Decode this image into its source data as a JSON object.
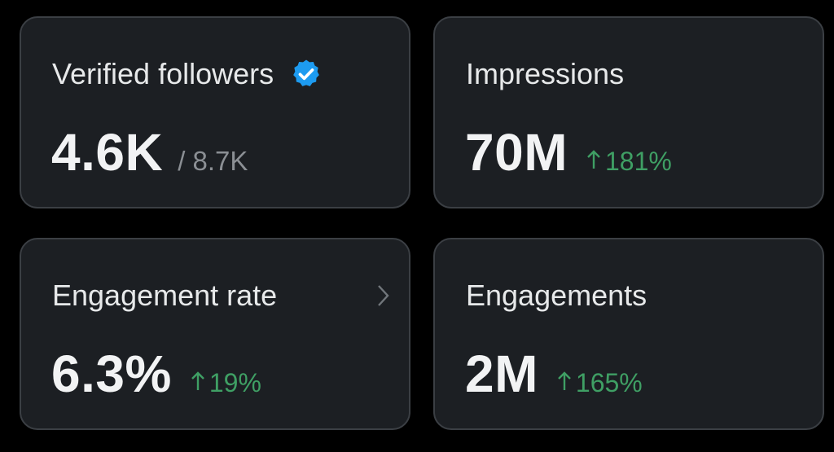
{
  "cards": [
    {
      "label": "Verified followers",
      "value": "4.6K",
      "total": "/ 8.7K"
    },
    {
      "label": "Impressions",
      "value": "70M",
      "change": "181%"
    },
    {
      "label": "Engagement rate",
      "value": "6.3%",
      "change": "19%"
    },
    {
      "label": "Engagements",
      "value": "2M",
      "change": "165%"
    }
  ]
}
